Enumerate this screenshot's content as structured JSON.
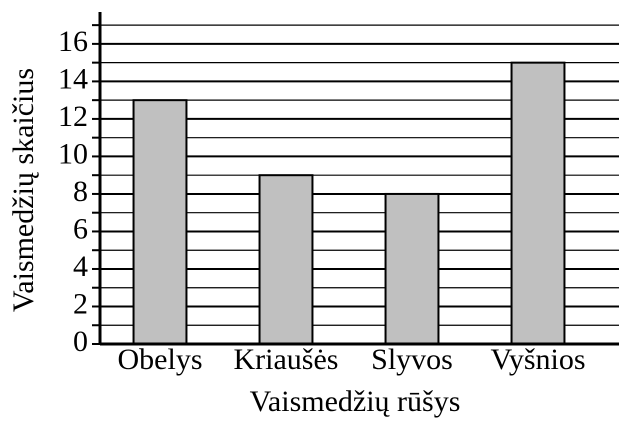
{
  "chart_data": {
    "type": "bar",
    "categories": [
      "Obelys",
      "Kriaušės",
      "Slyvos",
      "Vyšnios"
    ],
    "values": [
      13,
      9,
      8,
      15
    ],
    "color": "#c0c0c0",
    "x_label": "Vaismedžių rūšys",
    "y_label": "Vaismedžių skaičius",
    "ylim": [
      0,
      17.7
    ],
    "yticks": [
      0,
      2,
      4,
      6,
      8,
      10,
      12,
      14,
      16
    ],
    "minor_yticks": [
      1,
      3,
      5,
      7,
      9,
      11,
      13,
      15,
      17
    ],
    "grid": true
  }
}
